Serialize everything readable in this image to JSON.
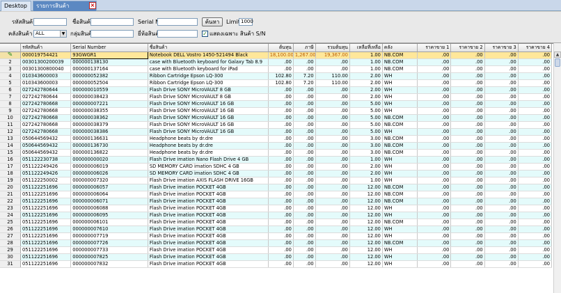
{
  "tabs": {
    "desktop": "Desktop",
    "serial_report": "รายการสินค้าตาม(S/N)",
    "close_glyph": "×"
  },
  "filters": {
    "product_code_label": "รหัสสินค้า :",
    "product_name_label": "ชื่อสินค้า :",
    "serial_no_label": "Serial No :",
    "search_button": "ค้นหา",
    "limit_label": "Limit :",
    "limit_value": "1000",
    "warehouse_label": "คลังสินค้า :",
    "warehouse_value": "ALL",
    "product_group_label": "กลุ่มสินค้า :",
    "brand_label": "ยี่ห้อสินค้า :",
    "show_sn_only_label": "แสดงเฉพาะ สินค้า S/N",
    "show_sn_only_checked": true
  },
  "grid": {
    "columns": [
      "",
      "รหัสสินค้า",
      "Serial Number",
      "ชื่อสินค้า",
      "ต้นทุน",
      "ภาษี",
      "รวมต้นทุน",
      "เหลือที่เหลือ",
      "คลัง",
      "ราคาขาย 1",
      "ราคาขาย 2",
      "ราคาขาย 3",
      "ราคาขาย 4"
    ],
    "rows": [
      {
        "no": "1",
        "code": "000019754421",
        "serial": "93GWGR1",
        "name": "Notebook DELL Vostro 1450-521494 Black",
        "cost": "18,100.00",
        "tax": "1,267.00",
        "total": "19,367.00",
        "qty": "1.00",
        "wh": "NB.COM",
        "p1": ".00",
        "p2": ".00",
        "p3": ".00",
        "p4": ".00"
      },
      {
        "no": "2",
        "code": "00301300200039",
        "serial": "000000138130",
        "name": "case with Bluetooth keyboard for Galaxy Tab 8.9",
        "cost": ".00",
        "tax": ".00",
        "total": ".00",
        "qty": "1.00",
        "wh": "NB.COM",
        "p1": ".00",
        "p2": ".00",
        "p3": ".00",
        "p4": ".00"
      },
      {
        "no": "3",
        "code": "00301300800040",
        "serial": "000000137164",
        "name": "case with Bluetooth keyboard for iPad",
        "cost": ".00",
        "tax": ".00",
        "total": ".00",
        "qty": "1.00",
        "wh": "NB.COM",
        "p1": ".00",
        "p2": ".00",
        "p3": ".00",
        "p4": ".00"
      },
      {
        "no": "4",
        "code": "010343600003",
        "serial": "000000052382",
        "name": "Ribbon Cartridge Epson LQ-300",
        "cost": "102.80",
        "tax": "7.20",
        "total": "110.00",
        "qty": "2.00",
        "wh": "WH",
        "p1": ".00",
        "p2": ".00",
        "p3": ".00",
        "p4": ".00"
      },
      {
        "no": "5",
        "code": "010343600003",
        "serial": "000000052504",
        "name": "Ribbon Cartridge Epson LQ-300",
        "cost": "102.80",
        "tax": "7.20",
        "total": "110.00",
        "qty": "2.00",
        "wh": "WH",
        "p1": ".00",
        "p2": ".00",
        "p3": ".00",
        "p4": ".00"
      },
      {
        "no": "6",
        "code": "027242780644",
        "serial": "000000010559",
        "name": "Flash Drive SONY MicroVAULT 8 GB",
        "cost": ".00",
        "tax": ".00",
        "total": ".00",
        "qty": "2.00",
        "wh": "WH",
        "p1": ".00",
        "p2": ".00",
        "p3": ".00",
        "p4": ".00"
      },
      {
        "no": "7",
        "code": "027242780644",
        "serial": "000000038423",
        "name": "Flash Drive SONY MicroVAULT 8 GB",
        "cost": ".00",
        "tax": ".00",
        "total": ".00",
        "qty": "2.00",
        "wh": "WH",
        "p1": ".00",
        "p2": ".00",
        "p3": ".00",
        "p4": ".00"
      },
      {
        "no": "8",
        "code": "027242780668",
        "serial": "000000007221",
        "name": "Flash Drive SONY MicroVAULT 16 GB",
        "cost": ".00",
        "tax": ".00",
        "total": ".00",
        "qty": "5.00",
        "wh": "WH",
        "p1": ".00",
        "p2": ".00",
        "p3": ".00",
        "p4": ".00"
      },
      {
        "no": "9",
        "code": "027242780668",
        "serial": "000000038355",
        "name": "Flash Drive SONY MicroVAULT 16 GB",
        "cost": ".00",
        "tax": ".00",
        "total": ".00",
        "qty": "5.00",
        "wh": "WH",
        "p1": ".00",
        "p2": ".00",
        "p3": ".00",
        "p4": ".00"
      },
      {
        "no": "10",
        "code": "027242780668",
        "serial": "000000038362",
        "name": "Flash Drive SONY MicroVAULT 16 GB",
        "cost": ".00",
        "tax": ".00",
        "total": ".00",
        "qty": "5.00",
        "wh": "NB.COM",
        "p1": ".00",
        "p2": ".00",
        "p3": ".00",
        "p4": ".00"
      },
      {
        "no": "11",
        "code": "027242780668",
        "serial": "000000038379",
        "name": "Flash Drive SONY MicroVAULT 16 GB",
        "cost": ".00",
        "tax": ".00",
        "total": ".00",
        "qty": "5.00",
        "wh": "NB.COM",
        "p1": ".00",
        "p2": ".00",
        "p3": ".00",
        "p4": ".00"
      },
      {
        "no": "12",
        "code": "027242780668",
        "serial": "000000038386",
        "name": "Flash Drive SONY MicroVAULT 16 GB",
        "cost": ".00",
        "tax": ".00",
        "total": ".00",
        "qty": "5.00",
        "wh": "WH",
        "p1": ".00",
        "p2": ".00",
        "p3": ".00",
        "p4": ".00"
      },
      {
        "no": "13",
        "code": "050644569432",
        "serial": "000000136631",
        "name": "Headphone beats by dr.dre",
        "cost": ".00",
        "tax": ".00",
        "total": ".00",
        "qty": "3.00",
        "wh": "NB.COM",
        "p1": ".00",
        "p2": ".00",
        "p3": ".00",
        "p4": ".00"
      },
      {
        "no": "14",
        "code": "050644569432",
        "serial": "000000136730",
        "name": "Headphone beats by dr.dre",
        "cost": ".00",
        "tax": ".00",
        "total": ".00",
        "qty": "3.00",
        "wh": "NB.COM",
        "p1": ".00",
        "p2": ".00",
        "p3": ".00",
        "p4": ".00"
      },
      {
        "no": "15",
        "code": "050644569432",
        "serial": "000000136822",
        "name": "Headphone beats by dr.dre",
        "cost": ".00",
        "tax": ".00",
        "total": ".00",
        "qty": "3.00",
        "wh": "NB.COM",
        "p1": ".00",
        "p2": ".00",
        "p3": ".00",
        "p4": ".00"
      },
      {
        "no": "16",
        "code": "051122230738",
        "serial": "000000000020",
        "name": "Flash Drive imation Nano Flash Drive 4 GB",
        "cost": ".00",
        "tax": ".00",
        "total": ".00",
        "qty": "1.00",
        "wh": "WH",
        "p1": ".00",
        "p2": ".00",
        "p3": ".00",
        "p4": ".00"
      },
      {
        "no": "17",
        "code": "051122249426",
        "serial": "000000006019",
        "name": "SD MEMORY CARD imation SDHC 4 GB",
        "cost": ".00",
        "tax": ".00",
        "total": ".00",
        "qty": "2.00",
        "wh": "WH",
        "p1": ".00",
        "p2": ".00",
        "p3": ".00",
        "p4": ".00"
      },
      {
        "no": "18",
        "code": "051122249426",
        "serial": "000000006026",
        "name": "SD MEMORY CARD imation SDHC 4 GB",
        "cost": ".00",
        "tax": ".00",
        "total": ".00",
        "qty": "2.00",
        "wh": "WH",
        "p1": ".00",
        "p2": ".00",
        "p3": ".00",
        "p4": ".00"
      },
      {
        "no": "19",
        "code": "051122250002",
        "serial": "000000007320",
        "name": "Flash Drive imation AXIS FLASH DRIVE 16GB",
        "cost": ".00",
        "tax": ".00",
        "total": ".00",
        "qty": "1.00",
        "wh": "WH",
        "p1": ".00",
        "p2": ".00",
        "p3": ".00",
        "p4": ".00"
      },
      {
        "no": "20",
        "code": "051122251696",
        "serial": "000000006057",
        "name": "Flash Drive imation POCKET 4GB",
        "cost": ".00",
        "tax": ".00",
        "total": ".00",
        "qty": "12.00",
        "wh": "NB.COM",
        "p1": ".00",
        "p2": ".00",
        "p3": ".00",
        "p4": ".00"
      },
      {
        "no": "21",
        "code": "051122251696",
        "serial": "000000006064",
        "name": "Flash Drive imation POCKET 4GB",
        "cost": ".00",
        "tax": ".00",
        "total": ".00",
        "qty": "12.00",
        "wh": "NB.COM",
        "p1": ".00",
        "p2": ".00",
        "p3": ".00",
        "p4": ".00"
      },
      {
        "no": "22",
        "code": "051122251696",
        "serial": "000000006071",
        "name": "Flash Drive imation POCKET 4GB",
        "cost": ".00",
        "tax": ".00",
        "total": ".00",
        "qty": "12.00",
        "wh": "NB.COM",
        "p1": ".00",
        "p2": ".00",
        "p3": ".00",
        "p4": ".00"
      },
      {
        "no": "23",
        "code": "051122251696",
        "serial": "000000006088",
        "name": "Flash Drive imation POCKET 4GB",
        "cost": ".00",
        "tax": ".00",
        "total": ".00",
        "qty": "12.00",
        "wh": "WH",
        "p1": ".00",
        "p2": ".00",
        "p3": ".00",
        "p4": ".00"
      },
      {
        "no": "24",
        "code": "051122251696",
        "serial": "000000006095",
        "name": "Flash Drive imation POCKET 4GB",
        "cost": ".00",
        "tax": ".00",
        "total": ".00",
        "qty": "12.00",
        "wh": "WH",
        "p1": ".00",
        "p2": ".00",
        "p3": ".00",
        "p4": ".00"
      },
      {
        "no": "25",
        "code": "051122251696",
        "serial": "000000006101",
        "name": "Flash Drive imation POCKET 4GB",
        "cost": ".00",
        "tax": ".00",
        "total": ".00",
        "qty": "12.00",
        "wh": "NB.COM",
        "p1": ".00",
        "p2": ".00",
        "p3": ".00",
        "p4": ".00"
      },
      {
        "no": "26",
        "code": "051122251696",
        "serial": "000000007610",
        "name": "Flash Drive imation POCKET 4GB",
        "cost": ".00",
        "tax": ".00",
        "total": ".00",
        "qty": "12.00",
        "wh": "WH",
        "p1": ".00",
        "p2": ".00",
        "p3": ".00",
        "p4": ".00"
      },
      {
        "no": "27",
        "code": "051122251696",
        "serial": "000000007719",
        "name": "Flash Drive imation POCKET 4GB",
        "cost": ".00",
        "tax": ".00",
        "total": ".00",
        "qty": "12.00",
        "wh": "WH",
        "p1": ".00",
        "p2": ".00",
        "p3": ".00",
        "p4": ".00"
      },
      {
        "no": "28",
        "code": "051122251696",
        "serial": "000000007726",
        "name": "Flash Drive imation POCKET 4GB",
        "cost": ".00",
        "tax": ".00",
        "total": ".00",
        "qty": "12.00",
        "wh": "NB.COM",
        "p1": ".00",
        "p2": ".00",
        "p3": ".00",
        "p4": ".00"
      },
      {
        "no": "29",
        "code": "051122251696",
        "serial": "000000007733",
        "name": "Flash Drive imation POCKET 4GB",
        "cost": ".00",
        "tax": ".00",
        "total": ".00",
        "qty": "12.00",
        "wh": "WH",
        "p1": ".00",
        "p2": ".00",
        "p3": ".00",
        "p4": ".00"
      },
      {
        "no": "30",
        "code": "051122251696",
        "serial": "000000007825",
        "name": "Flash Drive imation POCKET 4GB",
        "cost": ".00",
        "tax": ".00",
        "total": ".00",
        "qty": "12.00",
        "wh": "WH",
        "p1": ".00",
        "p2": ".00",
        "p3": ".00",
        "p4": ".00"
      },
      {
        "no": "31",
        "code": "051122251696",
        "serial": "000000007832",
        "name": "Flash Drive imation POCKET 4GB",
        "cost": ".00",
        "tax": ".00",
        "total": ".00",
        "qty": "12.00",
        "wh": "WH",
        "p1": ".00",
        "p2": ".00",
        "p3": ".00",
        "p4": ".00"
      }
    ]
  },
  "colors": {
    "selected_row": "#ffe79a",
    "alt_row": "#e4fbfb",
    "highlight_text": "#b85a00",
    "active_tab": "#5b88c2"
  },
  "icons": {
    "edit_row": "pencil-icon",
    "sort_glyph": "▲",
    "dropdown_glyph": "▼",
    "check_glyph": "✓",
    "edit_glyph": "✎"
  }
}
